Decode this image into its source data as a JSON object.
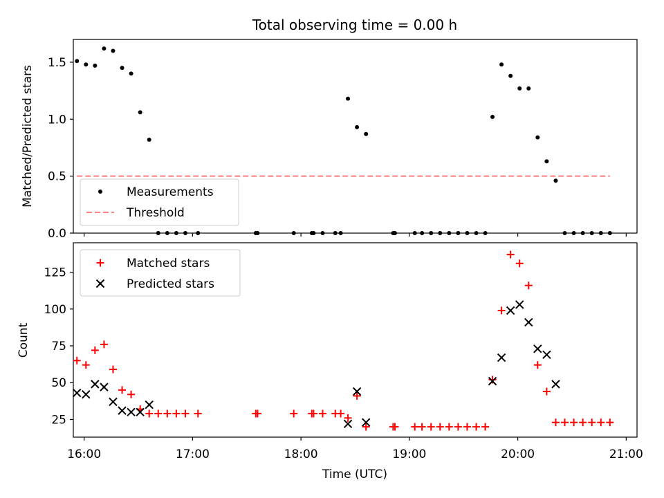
{
  "chart_data": [
    {
      "type": "scatter",
      "title": "Total observing time = 0.00 h",
      "xlabel": "",
      "ylabel": "Matched/Predicted stars",
      "xlim": [
        "15:54",
        "21:06"
      ],
      "ylim": [
        0,
        1.7
      ],
      "yticks": [
        "0.0",
        "0.5",
        "1.0",
        "1.5"
      ],
      "grid": false,
      "legend_position": "lower-left",
      "threshold": {
        "name": "Threshold",
        "value": 0.5,
        "x_start": "15:56",
        "x_end": "20:51",
        "color": "#ff7f7f"
      },
      "series": [
        {
          "name": "Measurements",
          "marker": "dot",
          "color": "#000000",
          "points": [
            [
              "15:56",
              1.51
            ],
            [
              "16:01",
              1.48
            ],
            [
              "16:06",
              1.47
            ],
            [
              "16:11",
              1.62
            ],
            [
              "16:16",
              1.6
            ],
            [
              "16:21",
              1.45
            ],
            [
              "16:26",
              1.4
            ],
            [
              "16:31",
              1.06
            ],
            [
              "16:36",
              0.82
            ],
            [
              "16:41",
              0
            ],
            [
              "16:46",
              0
            ],
            [
              "16:51",
              0
            ],
            [
              "16:56",
              0
            ],
            [
              "17:03",
              0
            ],
            [
              "17:35",
              0
            ],
            [
              "17:36",
              0
            ],
            [
              "17:56",
              0
            ],
            [
              "18:06",
              0
            ],
            [
              "18:07",
              0
            ],
            [
              "18:12",
              0
            ],
            [
              "18:19",
              0
            ],
            [
              "18:22",
              0
            ],
            [
              "18:26",
              1.18
            ],
            [
              "18:31",
              0.93
            ],
            [
              "18:36",
              0.87
            ],
            [
              "18:51",
              0
            ],
            [
              "18:52",
              0
            ],
            [
              "19:03",
              0
            ],
            [
              "19:07",
              0
            ],
            [
              "19:12",
              0
            ],
            [
              "19:17",
              0
            ],
            [
              "19:22",
              0
            ],
            [
              "19:27",
              0
            ],
            [
              "19:32",
              0
            ],
            [
              "19:37",
              0
            ],
            [
              "19:42",
              0
            ],
            [
              "19:46",
              1.02
            ],
            [
              "19:51",
              1.48
            ],
            [
              "19:56",
              1.38
            ],
            [
              "20:01",
              1.27
            ],
            [
              "20:06",
              1.27
            ],
            [
              "20:11",
              0.84
            ],
            [
              "20:16",
              0.63
            ],
            [
              "20:21",
              0.46
            ],
            [
              "20:26",
              0
            ],
            [
              "20:31",
              0
            ],
            [
              "20:36",
              0
            ],
            [
              "20:41",
              0
            ],
            [
              "20:46",
              0
            ],
            [
              "20:51",
              0
            ]
          ]
        }
      ]
    },
    {
      "type": "scatter",
      "title": "",
      "xlabel": "Time (UTC)",
      "ylabel": "Count",
      "xlim": [
        "15:54",
        "21:06"
      ],
      "xticks": [
        "16:00",
        "17:00",
        "18:00",
        "19:00",
        "20:00",
        "21:00"
      ],
      "ylim": [
        13,
        145
      ],
      "yticks": [
        "25",
        "50",
        "75",
        "100",
        "125"
      ],
      "grid": false,
      "legend_position": "upper-left",
      "series": [
        {
          "name": "Matched stars",
          "marker": "plus",
          "color": "#ff0000",
          "points": [
            [
              "15:56",
              65
            ],
            [
              "16:01",
              62
            ],
            [
              "16:06",
              72
            ],
            [
              "16:11",
              76
            ],
            [
              "16:16",
              59
            ],
            [
              "16:21",
              45
            ],
            [
              "16:26",
              42
            ],
            [
              "16:31",
              32
            ],
            [
              "16:36",
              29
            ],
            [
              "16:41",
              29
            ],
            [
              "16:46",
              29
            ],
            [
              "16:51",
              29
            ],
            [
              "16:56",
              29
            ],
            [
              "17:03",
              29
            ],
            [
              "17:35",
              29
            ],
            [
              "17:36",
              29
            ],
            [
              "17:56",
              29
            ],
            [
              "18:06",
              29
            ],
            [
              "18:07",
              29
            ],
            [
              "18:12",
              29
            ],
            [
              "18:19",
              29
            ],
            [
              "18:22",
              29
            ],
            [
              "18:26",
              26
            ],
            [
              "18:31",
              41
            ],
            [
              "18:36",
              20
            ],
            [
              "18:51",
              20
            ],
            [
              "18:52",
              20
            ],
            [
              "19:03",
              20
            ],
            [
              "19:07",
              20
            ],
            [
              "19:12",
              20
            ],
            [
              "19:17",
              20
            ],
            [
              "19:22",
              20
            ],
            [
              "19:27",
              20
            ],
            [
              "19:32",
              20
            ],
            [
              "19:37",
              20
            ],
            [
              "19:42",
              20
            ],
            [
              "19:46",
              52
            ],
            [
              "19:51",
              99
            ],
            [
              "19:56",
              137
            ],
            [
              "20:01",
              131
            ],
            [
              "20:06",
              116
            ],
            [
              "20:11",
              62
            ],
            [
              "20:16",
              44
            ],
            [
              "20:21",
              23
            ],
            [
              "20:26",
              23
            ],
            [
              "20:31",
              23
            ],
            [
              "20:36",
              23
            ],
            [
              "20:41",
              23
            ],
            [
              "20:46",
              23
            ],
            [
              "20:51",
              23
            ]
          ]
        },
        {
          "name": "Predicted stars",
          "marker": "x",
          "color": "#000000",
          "points": [
            [
              "15:56",
              43
            ],
            [
              "16:01",
              42
            ],
            [
              "16:06",
              49
            ],
            [
              "16:11",
              47
            ],
            [
              "16:16",
              37
            ],
            [
              "16:21",
              31
            ],
            [
              "16:26",
              30
            ],
            [
              "16:31",
              30
            ],
            [
              "16:36",
              35
            ],
            [
              "18:26",
              22
            ],
            [
              "18:31",
              44
            ],
            [
              "18:36",
              23
            ],
            [
              "19:46",
              51
            ],
            [
              "19:51",
              67
            ],
            [
              "19:56",
              99
            ],
            [
              "20:01",
              103
            ],
            [
              "20:06",
              91
            ],
            [
              "20:11",
              73
            ],
            [
              "20:16",
              69
            ],
            [
              "20:21",
              49
            ]
          ]
        }
      ]
    }
  ]
}
